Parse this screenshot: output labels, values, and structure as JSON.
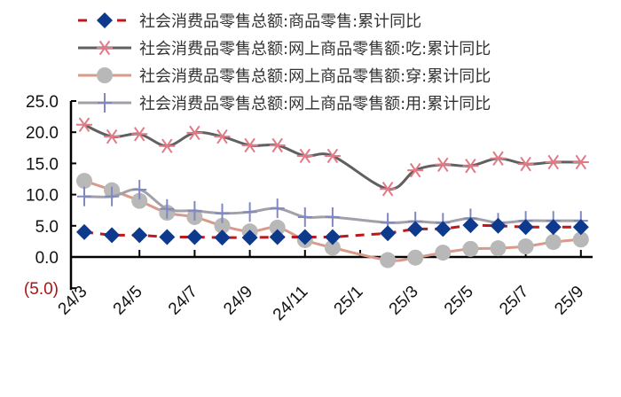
{
  "chart_data": {
    "type": "line",
    "title": "",
    "xlabel": "",
    "ylabel": "",
    "ylim": [
      -5,
      25
    ],
    "yticks": [
      25,
      20,
      15,
      10,
      5,
      0,
      -5
    ],
    "ytick_labels": [
      "25.0",
      "20.0",
      "15.0",
      "10.0",
      "5.0",
      "0.0",
      "(5.0)"
    ],
    "grid": false,
    "legend_position": "top",
    "x": [
      "24/3",
      "24/4",
      "24/5",
      "24/6",
      "24/7",
      "24/8",
      "24/9",
      "24/10",
      "24/11",
      "24/12",
      "25/2",
      "25/3",
      "25/4",
      "25/5",
      "25/6",
      "25/7",
      "25/8",
      "25/9"
    ],
    "xtick_labels": [
      "24/3",
      "24/5",
      "24/7",
      "24/9",
      "24/11",
      "25/1",
      "25/3",
      "25/5",
      "25/7",
      "25/9"
    ],
    "series": [
      {
        "name": "社会消费品零售总额:商品零售:累计同比",
        "style": "dashed line, diamond markers",
        "line_color": "#c0171c",
        "marker_color": "#0d3a8c",
        "values": [
          4.0,
          3.5,
          3.5,
          3.2,
          3.2,
          3.1,
          3.1,
          3.2,
          3.2,
          3.2,
          3.8,
          4.5,
          4.5,
          5.1,
          5.0,
          4.8,
          4.8,
          4.8
        ]
      },
      {
        "name": "社会消费品零售总额:网上商品零售额:吃:累计同比",
        "style": "solid line, asterisk markers",
        "line_color": "#606060",
        "marker_color": "#e07a86",
        "values": [
          21.2,
          19.3,
          19.7,
          17.8,
          19.9,
          19.3,
          17.9,
          17.9,
          16.2,
          16.2,
          10.9,
          13.9,
          14.8,
          14.6,
          15.8,
          14.9,
          15.2,
          15.2
        ]
      },
      {
        "name": "社会消费品零售总额:网上商品零售额:穿:累计同比",
        "style": "solid line, circle markers",
        "line_color": "#d99a8a",
        "marker_color": "#b8b8b8",
        "values": [
          12.2,
          10.7,
          9.0,
          7.1,
          6.4,
          5.0,
          4.1,
          4.7,
          2.7,
          1.5,
          -0.5,
          -0.1,
          0.7,
          1.3,
          1.4,
          1.7,
          2.4,
          2.8
        ]
      },
      {
        "name": "社会消费品零售总额:网上商品零售额:用:累计同比",
        "style": "solid line, plus markers",
        "line_color": "#a0a0a8",
        "marker_color": "#8088c0",
        "values": [
          9.7,
          9.7,
          10.8,
          7.7,
          7.4,
          7.0,
          7.2,
          7.8,
          6.4,
          6.4,
          5.5,
          5.7,
          5.5,
          6.2,
          5.5,
          5.8,
          5.8,
          5.8
        ]
      }
    ]
  },
  "legend": {
    "items": [
      {
        "label": "社会消费品零售总额:商品零售:累计同比"
      },
      {
        "label": "社会消费品零售总额:网上商品零售额:吃:累计同比"
      },
      {
        "label": "社会消费品零售总额:网上商品零售额:穿:累计同比"
      },
      {
        "label": "社会消费品零售总额:网上商品零售额:用:累计同比"
      }
    ]
  }
}
